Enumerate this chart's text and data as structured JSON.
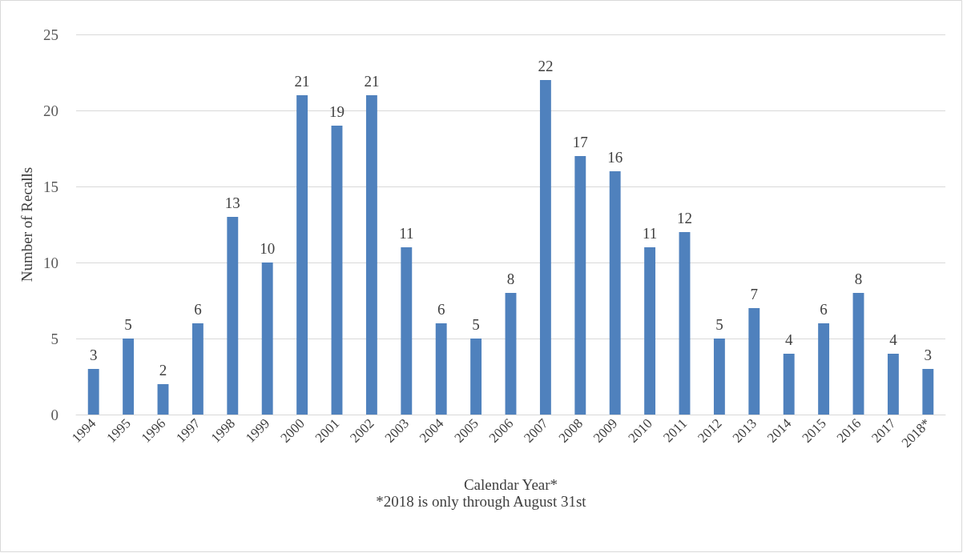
{
  "chart_data": {
    "type": "bar",
    "xlabel": "Calendar Year*",
    "ylabel": "Number of Recalls",
    "annotations": [
      "*2018 is only through August 31st"
    ],
    "categories": [
      "1994",
      "1995",
      "1996",
      "1997",
      "1998",
      "1999",
      "2000",
      "2001",
      "2002",
      "2003",
      "2004",
      "2005",
      "2006",
      "2007",
      "2008",
      "2009",
      "2010",
      "2011",
      "2012",
      "2013",
      "2014",
      "2015",
      "2016",
      "2017",
      "2018*"
    ],
    "values": [
      3,
      5,
      2,
      6,
      13,
      10,
      21,
      19,
      21,
      11,
      6,
      5,
      8,
      22,
      17,
      16,
      11,
      12,
      5,
      7,
      4,
      6,
      8,
      4,
      3
    ],
    "color": "#4f81bd",
    "ylim": [
      0,
      25
    ],
    "yticks": [
      0,
      5,
      10,
      15,
      20,
      25
    ],
    "grid": "y",
    "data_labels": true
  }
}
